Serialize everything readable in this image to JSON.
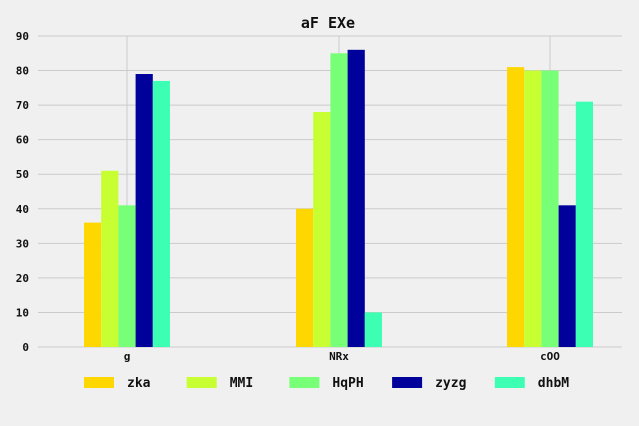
{
  "chart_data": {
    "type": "bar",
    "title": "aF EXe",
    "xlabel": "",
    "ylabel": "",
    "categories": [
      "g",
      "NRx",
      "cOO"
    ],
    "ylim": [
      0,
      90
    ],
    "yticks": [
      0,
      10,
      20,
      30,
      40,
      50,
      60,
      70,
      80,
      90
    ],
    "grid": true,
    "legend_position": "bottom",
    "series": [
      {
        "name": "zka",
        "color": "#ffd700",
        "values": [
          36,
          40,
          81
        ]
      },
      {
        "name": "MMI",
        "color": "#c8ff32",
        "values": [
          51,
          68,
          80
        ]
      },
      {
        "name": "HqPH",
        "color": "#78ff78",
        "values": [
          41,
          85,
          80
        ]
      },
      {
        "name": "zyzg",
        "color": "#00009b",
        "values": [
          79,
          86,
          41
        ]
      },
      {
        "name": "dhbM",
        "color": "#3cffb4",
        "values": [
          77,
          10,
          71
        ]
      }
    ]
  }
}
